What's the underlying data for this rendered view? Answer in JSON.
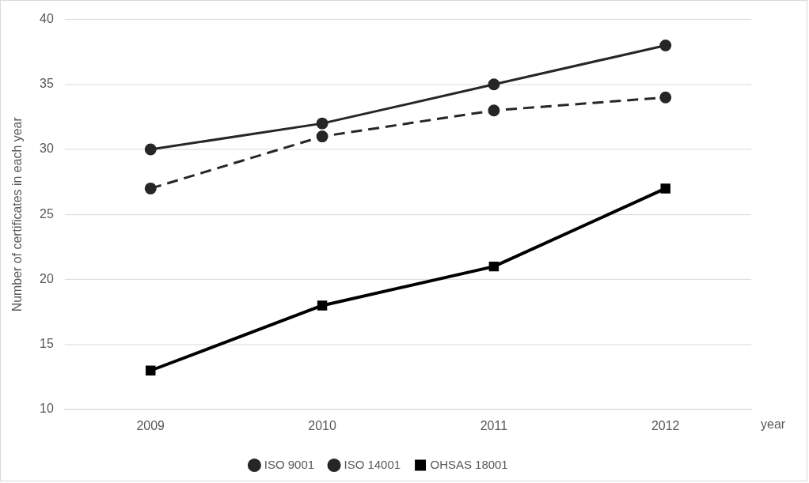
{
  "chart_data": {
    "type": "line",
    "xlabel": "year",
    "ylabel": "Number of certificates in each year",
    "categories": [
      "2009",
      "2010",
      "2011",
      "2012"
    ],
    "series": [
      {
        "name": "ISO 9001",
        "color": "#262626",
        "values": [
          30,
          32,
          35,
          38
        ],
        "marker": "circle",
        "line_style": "solid"
      },
      {
        "name": "ISO 14001",
        "color": "#262626",
        "values": [
          27,
          31,
          33,
          34
        ],
        "marker": "circle",
        "line_style": "dashed"
      },
      {
        "name": "OHSAS 18001",
        "color": "#000000",
        "values": [
          13,
          18,
          21,
          27
        ],
        "marker": "square",
        "line_style": "solid"
      }
    ],
    "ylim": [
      10,
      40
    ],
    "yticks": [
      10,
      15,
      20,
      25,
      30,
      35,
      40
    ],
    "grid": "y",
    "legend": "bottom"
  }
}
